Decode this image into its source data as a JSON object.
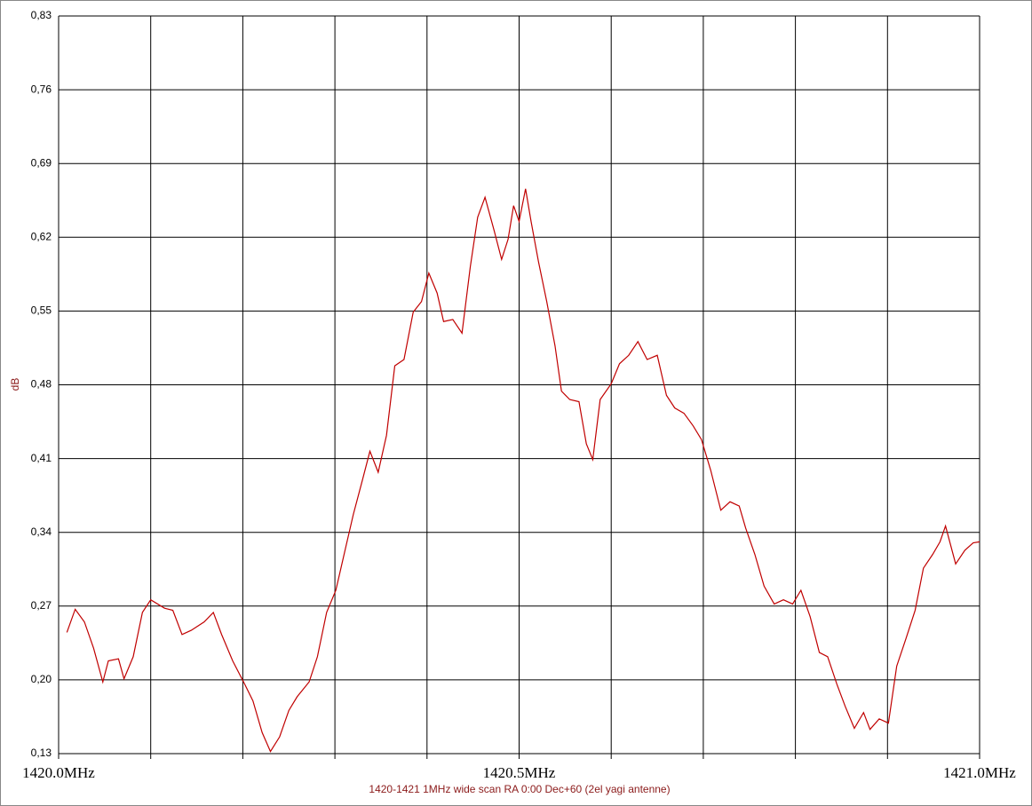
{
  "chart_data": {
    "type": "line",
    "title": "1420-1421 1MHz wide scan RA 0:00  Dec+60 (2el yagi antenne)",
    "y_label": "dB",
    "xlim": [
      1420.0,
      1421.0
    ],
    "ylim": [
      0.13,
      0.83
    ],
    "xticks": [
      {
        "value": 1420.0,
        "label": "1420.0MHz"
      },
      {
        "value": 1420.5,
        "label": "1420.5MHz"
      },
      {
        "value": 1421.0,
        "label": "1421.0MHz"
      }
    ],
    "xgrid": [
      1420.1,
      1420.2,
      1420.3,
      1420.4,
      1420.6,
      1420.7,
      1420.8,
      1420.9
    ],
    "yticks": [
      {
        "value": 0.83,
        "label": "0,83"
      },
      {
        "value": 0.76,
        "label": "0,76"
      },
      {
        "value": 0.69,
        "label": "0,69"
      },
      {
        "value": 0.62,
        "label": "0,62"
      },
      {
        "value": 0.55,
        "label": "0,55"
      },
      {
        "value": 0.48,
        "label": "0,48"
      },
      {
        "value": 0.41,
        "label": "0,41"
      },
      {
        "value": 0.34,
        "label": "0,34"
      },
      {
        "value": 0.27,
        "label": "0,27"
      },
      {
        "value": 0.2,
        "label": "0,20"
      },
      {
        "value": 0.13,
        "label": "0,13"
      }
    ],
    "grid": true,
    "color": "#c00000",
    "x": [
      1420.009,
      1420.018,
      1420.028,
      1420.038,
      1420.048,
      1420.054,
      1420.065,
      1420.071,
      1420.081,
      1420.091,
      1420.1,
      1420.115,
      1420.124,
      1420.134,
      1420.144,
      1420.158,
      1420.168,
      1420.177,
      1420.189,
      1420.202,
      1420.211,
      1420.221,
      1420.23,
      1420.24,
      1420.25,
      1420.259,
      1420.272,
      1420.281,
      1420.291,
      1420.301,
      1420.311,
      1420.32,
      1420.33,
      1420.338,
      1420.347,
      1420.356,
      1420.365,
      1420.375,
      1420.385,
      1420.394,
      1420.402,
      1420.411,
      1420.418,
      1420.428,
      1420.438,
      1420.447,
      1420.455,
      1420.463,
      1420.473,
      1420.481,
      1420.488,
      1420.494,
      1420.5,
      1420.507,
      1420.513,
      1420.521,
      1420.53,
      1420.539,
      1420.546,
      1420.555,
      1420.565,
      1420.573,
      1420.58,
      1420.588,
      1420.6,
      1420.609,
      1420.619,
      1420.629,
      1420.639,
      1420.65,
      1420.66,
      1420.669,
      1420.679,
      1420.689,
      1420.698,
      1420.708,
      1420.719,
      1420.729,
      1420.739,
      1420.746,
      1420.756,
      1420.766,
      1420.777,
      1420.787,
      1420.797,
      1420.806,
      1420.816,
      1420.826,
      1420.835,
      1420.845,
      1420.854,
      1420.864,
      1420.874,
      1420.881,
      1420.891,
      1420.901,
      1420.91,
      1420.92,
      1420.93,
      1420.939,
      1420.949,
      1420.957,
      1420.963,
      1420.974,
      1420.984,
      1420.993,
      1421.0
    ],
    "values": [
      0.245,
      0.267,
      0.255,
      0.23,
      0.198,
      0.218,
      0.22,
      0.201,
      0.222,
      0.264,
      0.276,
      0.268,
      0.266,
      0.243,
      0.247,
      0.255,
      0.264,
      0.243,
      0.218,
      0.196,
      0.18,
      0.15,
      0.132,
      0.146,
      0.171,
      0.184,
      0.198,
      0.222,
      0.264,
      0.285,
      0.323,
      0.357,
      0.39,
      0.417,
      0.397,
      0.432,
      0.498,
      0.504,
      0.549,
      0.559,
      0.586,
      0.567,
      0.54,
      0.542,
      0.529,
      0.592,
      0.639,
      0.658,
      0.626,
      0.599,
      0.618,
      0.65,
      0.635,
      0.666,
      0.635,
      0.597,
      0.559,
      0.517,
      0.474,
      0.466,
      0.464,
      0.424,
      0.409,
      0.466,
      0.481,
      0.5,
      0.508,
      0.521,
      0.504,
      0.508,
      0.47,
      0.458,
      0.453,
      0.441,
      0.428,
      0.399,
      0.361,
      0.369,
      0.365,
      0.344,
      0.319,
      0.289,
      0.272,
      0.276,
      0.272,
      0.285,
      0.26,
      0.226,
      0.222,
      0.196,
      0.175,
      0.154,
      0.169,
      0.153,
      0.163,
      0.159,
      0.213,
      0.239,
      0.266,
      0.306,
      0.319,
      0.331,
      0.346,
      0.31,
      0.323,
      0.33,
      0.331
    ]
  }
}
